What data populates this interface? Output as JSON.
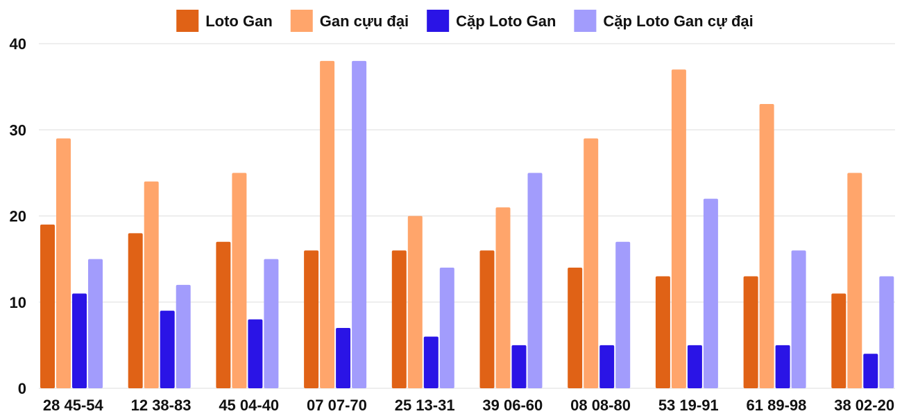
{
  "chart_data": {
    "type": "bar",
    "title": "",
    "xlabel": "",
    "ylabel": "",
    "ylim": [
      0,
      40
    ],
    "yticks": [
      0,
      10,
      20,
      30,
      40
    ],
    "grid": true,
    "legend_position": "top-center",
    "categories": [
      "28 45-54",
      "12 38-83",
      "45 04-40",
      "07 07-70",
      "25 13-31",
      "39 06-60",
      "08 08-80",
      "53 19-91",
      "61 89-98",
      "38 02-20"
    ],
    "series": [
      {
        "name": "Loto Gan",
        "color": "#e06216",
        "values": [
          19,
          18,
          17,
          16,
          16,
          16,
          14,
          13,
          13,
          11
        ]
      },
      {
        "name": "Gan cựu đại",
        "color": "#ffa56b",
        "values": [
          29,
          24,
          25,
          38,
          20,
          21,
          29,
          37,
          33,
          25
        ]
      },
      {
        "name": "Cặp Loto Gan",
        "color": "#2a14e6",
        "values": [
          11,
          9,
          8,
          7,
          6,
          5,
          5,
          5,
          5,
          4
        ]
      },
      {
        "name": "Cặp Loto Gan cự đại",
        "color": "#a29cfc",
        "values": [
          15,
          12,
          15,
          38,
          14,
          25,
          17,
          22,
          16,
          13
        ]
      }
    ]
  }
}
